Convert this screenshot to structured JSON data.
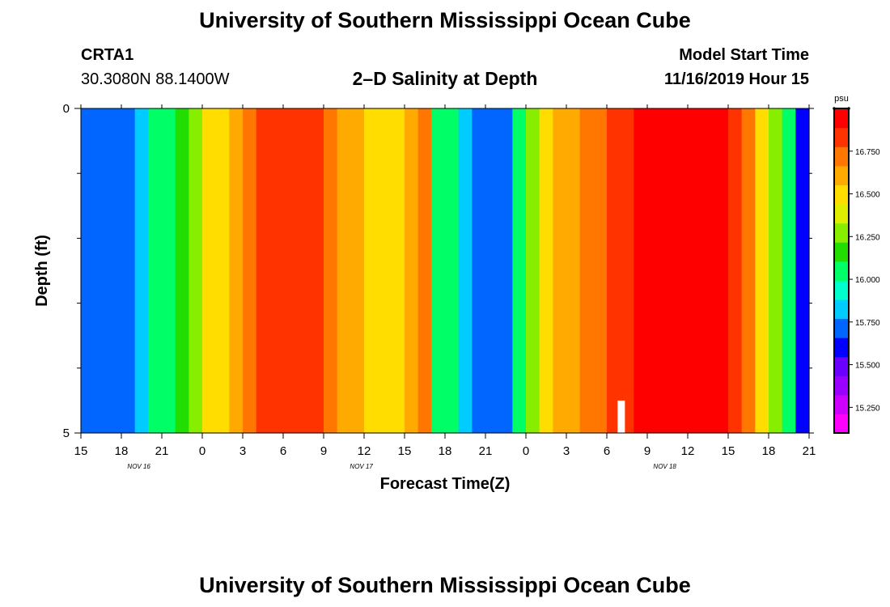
{
  "header": {
    "title": "University of Southern Mississippi Ocean Cube",
    "station": "CRTA1",
    "coords": "30.3080N 88.1400W",
    "plot_title": "2–D Salinity at Depth",
    "model_start_label": "Model Start Time",
    "model_start_value": "11/16/2019 Hour 15"
  },
  "footer": {
    "title": "University of Southern Mississippi Ocean Cube"
  },
  "chart_data": {
    "type": "heatmap",
    "title": "2–D Salinity at Depth",
    "xlabel": "Forecast Time(Z)",
    "ylabel": "Depth (ft)",
    "x_hours": [
      15,
      16,
      17,
      18,
      19,
      20,
      21,
      22,
      23,
      24,
      25,
      26,
      27,
      28,
      29,
      30,
      31,
      32,
      33,
      34,
      35,
      36,
      37,
      38,
      39,
      40,
      41,
      42,
      43,
      44,
      45,
      46,
      47,
      48,
      49,
      50,
      51,
      52,
      53,
      54,
      55,
      56,
      57,
      58,
      59,
      60,
      61,
      62,
      63,
      64,
      65,
      66,
      67,
      68,
      69
    ],
    "x_tick_labels": [
      "15",
      "18",
      "21",
      "0",
      "3",
      "6",
      "9",
      "12",
      "15",
      "18",
      "21",
      "0",
      "3",
      "6",
      "9",
      "12",
      "15",
      "18",
      "21"
    ],
    "x_tick_hours": [
      15,
      18,
      21,
      24,
      27,
      30,
      33,
      36,
      39,
      42,
      45,
      48,
      51,
      54,
      57,
      60,
      63,
      66,
      69
    ],
    "date_labels": [
      {
        "label": "NOV 16",
        "hour": 19.3
      },
      {
        "label": "NOV 17",
        "hour": 35.8
      },
      {
        "label": "NOV 18",
        "hour": 58.3
      }
    ],
    "x_range": [
      15,
      69
    ],
    "y_tick_labels": [
      "0",
      "5"
    ],
    "y_range": [
      0,
      5
    ],
    "y_minor_ticks": [
      1,
      2,
      3,
      4
    ],
    "salinity_by_hour": [
      15.7,
      15.7,
      15.7,
      15.7,
      15.85,
      16.0,
      16.1,
      16.2,
      16.3,
      16.45,
      16.55,
      16.62,
      16.72,
      16.8,
      16.85,
      16.85,
      16.85,
      16.8,
      16.72,
      16.62,
      16.57,
      16.55,
      16.55,
      16.55,
      16.6,
      16.7,
      16.1,
      16.0,
      15.85,
      15.75,
      15.7,
      15.75,
      16.0,
      16.3,
      16.5,
      16.6,
      16.65,
      16.7,
      16.75,
      16.8,
      16.85,
      16.9,
      16.95,
      17.0,
      17.0,
      16.95,
      16.92,
      16.9,
      16.85,
      16.7,
      16.55,
      16.3,
      16.0,
      15.65,
      15.5
    ],
    "colorbar": {
      "unit": "psu",
      "min": 15.1,
      "max": 17.0,
      "tick_labels": [
        "15.250",
        "15.500",
        "15.750",
        "16.000",
        "16.250",
        "16.500",
        "16.750"
      ],
      "tick_values": [
        15.25,
        15.5,
        15.75,
        16.0,
        16.25,
        16.5,
        16.75
      ]
    },
    "gap_marker": {
      "hour": 54.8,
      "depth_from": 4.5,
      "depth_to": 5
    },
    "colors": {
      "palette": [
        "#ff00ff",
        "#cc00ff",
        "#9900ff",
        "#6a00ff",
        "#0000ff",
        "#0066ff",
        "#00ccff",
        "#00ffcc",
        "#00ff66",
        "#22dd00",
        "#88ee00",
        "#ddee00",
        "#ffdd00",
        "#ffaa00",
        "#ff7700",
        "#ff3300",
        "#ff0000"
      ]
    }
  }
}
